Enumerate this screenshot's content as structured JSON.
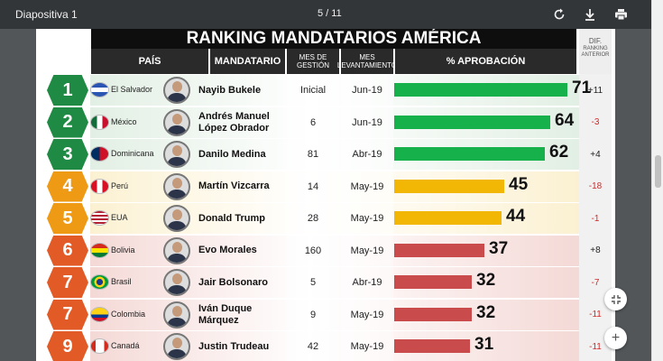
{
  "toolbar": {
    "title": "Diapositiva 1",
    "page_indicator": "5 / 11"
  },
  "slide": {
    "title": "RANKING MANDATARIOS AMÉRICA",
    "headers": {
      "country": "PAÍS",
      "leader": "MANDATARIO",
      "gestion": "MES DE GESTIÓN",
      "levantamiento": "MES LEVANTAMIENTO",
      "approval": "% APROBACIÓN",
      "dif": "DIF.",
      "dif_sub": "RANKING ANTERIOR"
    },
    "scale_max": 100,
    "rows": [
      {
        "rank": "1",
        "tier": "green",
        "country": "El Salvador",
        "leader_l1": "Nayib Bukele",
        "leader_l2": "",
        "gestion": "Inicial",
        "lev": "Jun-19",
        "approval": 71,
        "dif": "+11"
      },
      {
        "rank": "2",
        "tier": "green",
        "country": "México",
        "leader_l1": "Andrés Manuel",
        "leader_l2": "López Obrador",
        "gestion": "6",
        "lev": "Jun-19",
        "approval": 64,
        "dif": "-3"
      },
      {
        "rank": "3",
        "tier": "green",
        "country": "Dominicana",
        "leader_l1": "Danilo Medina",
        "leader_l2": "",
        "gestion": "81",
        "lev": "Abr-19",
        "approval": 62,
        "dif": "+4"
      },
      {
        "rank": "4",
        "tier": "yellow",
        "country": "Perú",
        "leader_l1": "Martín Vizcarra",
        "leader_l2": "",
        "gestion": "14",
        "lev": "May-19",
        "approval": 45,
        "dif": "-18"
      },
      {
        "rank": "5",
        "tier": "yellow",
        "country": "EUA",
        "leader_l1": "Donald Trump",
        "leader_l2": "",
        "gestion": "28",
        "lev": "May-19",
        "approval": 44,
        "dif": "-1"
      },
      {
        "rank": "6",
        "tier": "red",
        "country": "Bolivia",
        "leader_l1": "Evo Morales",
        "leader_l2": "",
        "gestion": "160",
        "lev": "May-19",
        "approval": 37,
        "dif": "+8"
      },
      {
        "rank": "7",
        "tier": "red",
        "country": "Brasil",
        "leader_l1": "Jair Bolsonaro",
        "leader_l2": "",
        "gestion": "5",
        "lev": "Abr-19",
        "approval": 32,
        "dif": "-7"
      },
      {
        "rank": "7",
        "tier": "red",
        "country": "Colombia",
        "leader_l1": "Iván Duque",
        "leader_l2": "Márquez",
        "gestion": "9",
        "lev": "May-19",
        "approval": 32,
        "dif": "-11"
      },
      {
        "rank": "9",
        "tier": "red",
        "country": "Canadá",
        "leader_l1": "Justin Trudeau",
        "leader_l2": "",
        "gestion": "42",
        "lev": "May-19",
        "approval": 31,
        "dif": "-11"
      }
    ]
  },
  "colors": {
    "green_badge": "#1f8a43",
    "green_bar": "#16b14b",
    "green_row": "#e2efe4",
    "yellow_badge": "#ee9a14",
    "yellow_bar": "#f2b705",
    "yellow_row": "#fbf1d2",
    "red_badge": "#e25a26",
    "red_bar": "#c94b4b",
    "red_row": "#f4d9d6",
    "dif_positive": "#222222",
    "dif_negative": "#d12b2b"
  },
  "icons": {
    "rotate": "rotate-icon",
    "download": "download-icon",
    "print": "print-icon",
    "fit": "fit-page-icon",
    "zoom_in": "zoom-in-icon"
  }
}
